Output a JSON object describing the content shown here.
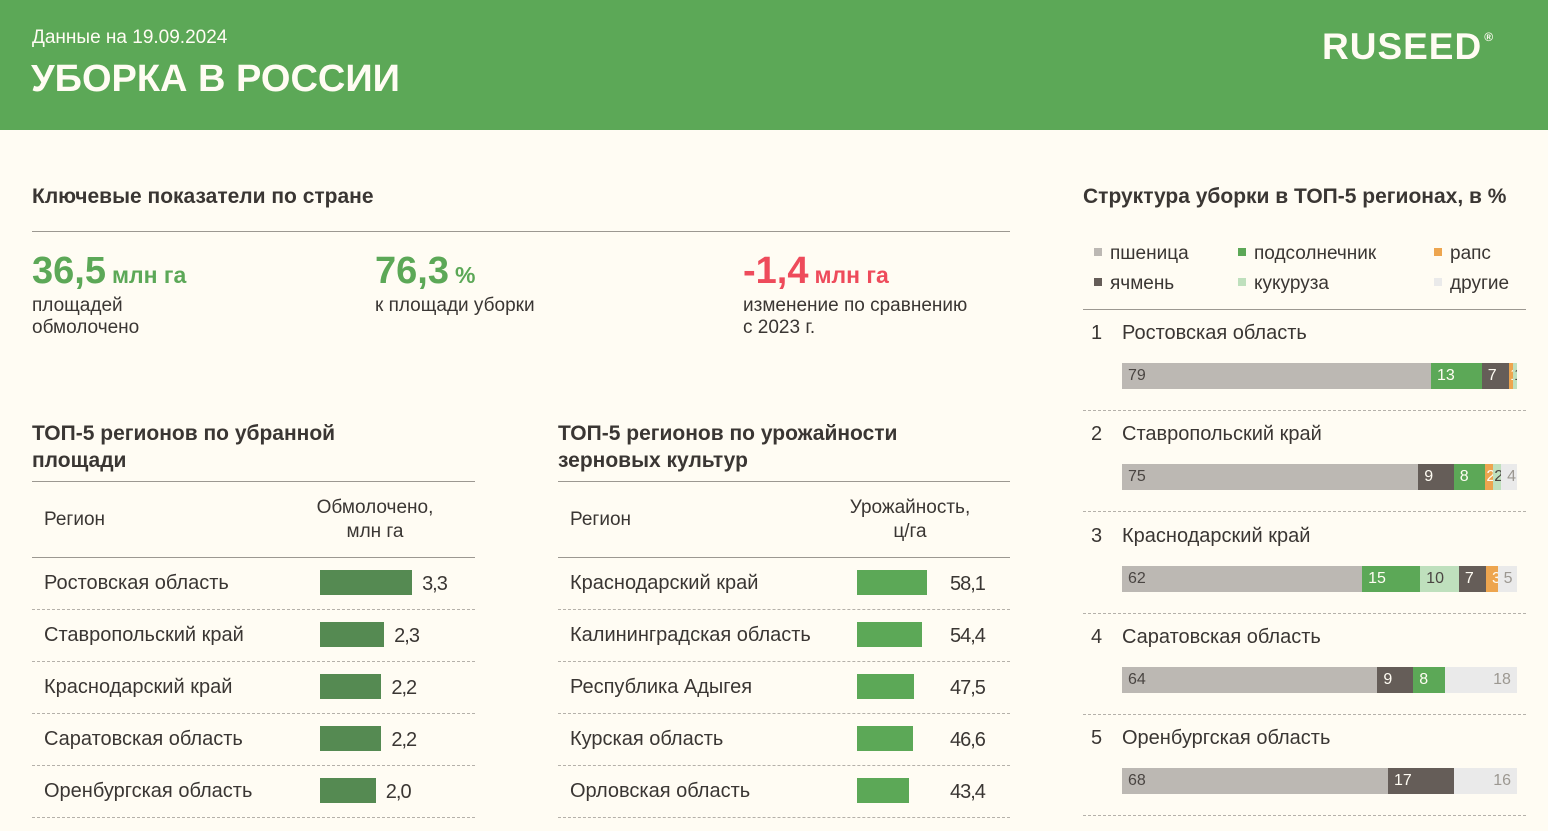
{
  "header": {
    "date": "Данные на 19.09.2024",
    "title": "УБОРКА В РОССИИ",
    "logo": "RUSEED",
    "logo_mark": "®"
  },
  "kpi": {
    "title": "Ключевые показатели по стране",
    "items": [
      {
        "value": "36,5",
        "unit": "млн га",
        "desc1": "площадей",
        "desc2": "обмолочено",
        "color": "#5ca857"
      },
      {
        "value": "76,3",
        "unit": "%",
        "desc1": "к площади уборки",
        "desc2": "",
        "color": "#5ca857"
      },
      {
        "value": "-1,4",
        "unit": "млн га",
        "desc1": "изменение по сравнению",
        "desc2": "с 2023 г.",
        "color": "#ee4b5b"
      }
    ]
  },
  "area_table": {
    "title1": "ТОП-5 регионов по убранной",
    "title2": "площади",
    "col1": "Регион",
    "col2a": "Обмолочено,",
    "col2b": "млн га",
    "bar_color": "#558a52",
    "rows": [
      {
        "region": "Ростовская область",
        "value": "3,3",
        "num": 3.3
      },
      {
        "region": "Ставропольский край",
        "value": "2,3",
        "num": 2.3
      },
      {
        "region": "Краснодарский край",
        "value": "2,2",
        "num": 2.2
      },
      {
        "region": "Саратовская область",
        "value": "2,2",
        "num": 2.2
      },
      {
        "region": "Оренбургская область",
        "value": "2,0",
        "num": 2.0
      }
    ]
  },
  "yield_table": {
    "title1": "ТОП-5 регионов по урожайности",
    "title2": "зерновых культур",
    "col1": "Регион",
    "col2a": "Урожайность,",
    "col2b": "ц/га",
    "bar_color": "#5ca857",
    "rows": [
      {
        "region": "Краснодарский край",
        "value": "58,1",
        "num": 58.1
      },
      {
        "region": "Калининградская область",
        "value": "54,4",
        "num": 54.4
      },
      {
        "region": "Республика Адыгея",
        "value": "47,5",
        "num": 47.5
      },
      {
        "region": "Курская область",
        "value": "46,6",
        "num": 46.6
      },
      {
        "region": "Орловская область",
        "value": "43,4",
        "num": 43.4
      }
    ]
  },
  "structure": {
    "title": "Структура уборки в ТОП-5 регионах, в %",
    "legend": [
      {
        "key": "wheat",
        "label": "пшеница",
        "color": "#bcb8b3"
      },
      {
        "key": "sunflower",
        "label": "подсолнечник",
        "color": "#5ca857"
      },
      {
        "key": "rapeseed",
        "label": "рапс",
        "color": "#eda54f"
      },
      {
        "key": "barley",
        "label": "ячмень",
        "color": "#655d58"
      },
      {
        "key": "corn",
        "label": "кукуруза",
        "color": "#bfe0bd"
      },
      {
        "key": "other",
        "label": "другие",
        "color": "#eaeaea"
      }
    ],
    "regions": [
      {
        "rank": "1",
        "name": "Ростовская область",
        "segments": [
          {
            "key": "wheat",
            "value": 79
          },
          {
            "key": "sunflower",
            "value": 13
          },
          {
            "key": "barley",
            "value": 7
          },
          {
            "key": "rapeseed",
            "value": 1
          },
          {
            "key": "corn",
            "value": 1
          }
        ]
      },
      {
        "rank": "2",
        "name": "Ставропольский край",
        "segments": [
          {
            "key": "wheat",
            "value": 75
          },
          {
            "key": "barley",
            "value": 9
          },
          {
            "key": "sunflower",
            "value": 8
          },
          {
            "key": "rapeseed",
            "value": 2
          },
          {
            "key": "corn",
            "value": 2
          },
          {
            "key": "other",
            "value": 4
          }
        ]
      },
      {
        "rank": "3",
        "name": "Краснодарский край",
        "segments": [
          {
            "key": "wheat",
            "value": 62
          },
          {
            "key": "sunflower",
            "value": 15
          },
          {
            "key": "corn",
            "value": 10
          },
          {
            "key": "barley",
            "value": 7
          },
          {
            "key": "rapeseed",
            "value": 3
          },
          {
            "key": "other",
            "value": 5
          }
        ]
      },
      {
        "rank": "4",
        "name": "Саратовская область",
        "segments": [
          {
            "key": "wheat",
            "value": 64
          },
          {
            "key": "barley",
            "value": 9
          },
          {
            "key": "sunflower",
            "value": 8
          },
          {
            "key": "other",
            "value": 18
          }
        ]
      },
      {
        "rank": "5",
        "name": "Оренбургская область",
        "segments": [
          {
            "key": "wheat",
            "value": 68
          },
          {
            "key": "barley",
            "value": 17
          },
          {
            "key": "other",
            "value": 16
          }
        ]
      }
    ]
  }
}
